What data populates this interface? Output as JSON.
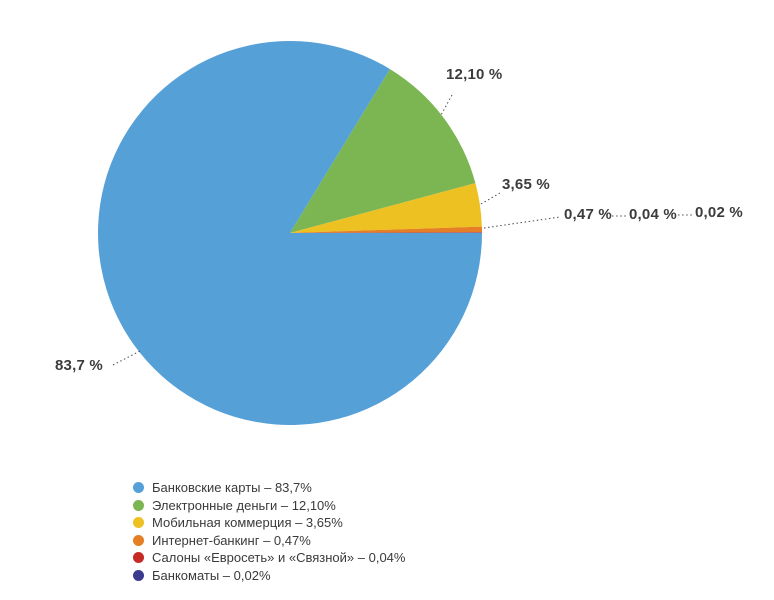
{
  "chart_data": {
    "type": "pie",
    "title": "",
    "start_angle_deg": 0,
    "direction": "clockwise",
    "legend_position": "bottom",
    "total": 100,
    "slices": [
      {
        "label": "Банковские карты",
        "value": 83.7,
        "color": "#56A0D8",
        "callout": "83,7 %",
        "legend": "Банковские карты – 83,7%"
      },
      {
        "label": "Электронные деньги",
        "value": 12.1,
        "color": "#7CB652",
        "callout": "12,10 %",
        "legend": "Электронные деньги – 12,10%"
      },
      {
        "label": "Мобильная коммерция",
        "value": 3.65,
        "color": "#EDC122",
        "callout": "3,65 %",
        "legend": "Мобильная коммерция – 3,65%"
      },
      {
        "label": "Интернет-банкинг",
        "value": 0.47,
        "color": "#E57E25",
        "callout": "0,47 %",
        "legend": "Интернет-банкинг – 0,47%"
      },
      {
        "label": "Салоны «Евросеть» и «Связной»",
        "value": 0.04,
        "color": "#C52A25",
        "callout": "0,04 %",
        "legend": "Салоны «Евросеть» и «Связной» – 0,04%"
      },
      {
        "label": "Банкоматы",
        "value": 0.02,
        "color": "#3B3A8F",
        "callout": "0,02 %",
        "legend": "Банкоматы – 0,02%"
      }
    ]
  }
}
